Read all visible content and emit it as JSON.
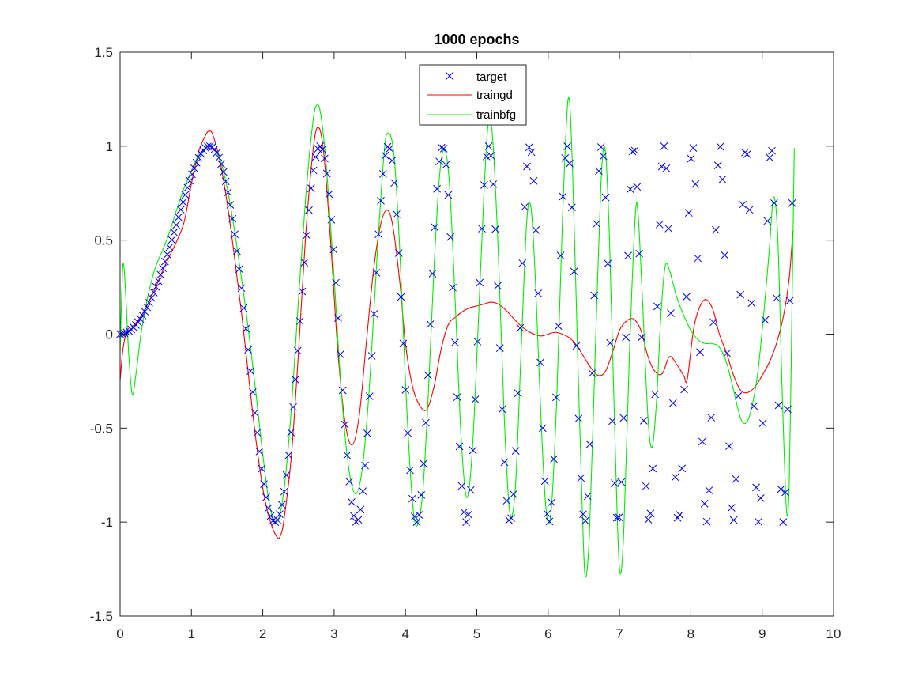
{
  "chart_data": {
    "type": "line",
    "title": "1000 epochs",
    "xlabel": "",
    "ylabel": "",
    "xlim": [
      0,
      10
    ],
    "ylim": [
      -1.5,
      1.5
    ],
    "xticks": [
      0,
      1,
      2,
      3,
      4,
      5,
      6,
      7,
      8,
      9,
      10
    ],
    "yticks": [
      -1.5,
      -1,
      -0.5,
      0,
      0.5,
      1,
      1.5
    ],
    "xtick_labels": [
      "0",
      "1",
      "2",
      "3",
      "4",
      "5",
      "6",
      "7",
      "8",
      "9",
      "10"
    ],
    "ytick_labels": [
      "-1.5",
      "-1",
      "-0.5",
      "0",
      "0.5",
      "1",
      "1.5"
    ],
    "grid": false,
    "legend_location": "top-center",
    "target": {
      "name": "target",
      "marker": "x",
      "color": "#0000ff",
      "x_start": 0,
      "x_end": 9.42,
      "n_points": 300,
      "function": "sin(x^2)"
    },
    "series": [
      {
        "name": "traingd",
        "color": "#ff0000",
        "points": [
          [
            0,
            -0.25
          ],
          [
            0.04,
            -0.08
          ],
          [
            0.1,
            0.02
          ],
          [
            0.2,
            0.05
          ],
          [
            0.3,
            0.1
          ],
          [
            0.4,
            0.17
          ],
          [
            0.5,
            0.25
          ],
          [
            0.6,
            0.34
          ],
          [
            0.7,
            0.42
          ],
          [
            0.8,
            0.5
          ],
          [
            0.9,
            0.6
          ],
          [
            1.0,
            0.8
          ],
          [
            1.1,
            0.97
          ],
          [
            1.2,
            1.06
          ],
          [
            1.25,
            1.08
          ],
          [
            1.3,
            1.06
          ],
          [
            1.4,
            0.92
          ],
          [
            1.5,
            0.7
          ],
          [
            1.6,
            0.42
          ],
          [
            1.7,
            0.12
          ],
          [
            1.8,
            -0.22
          ],
          [
            1.9,
            -0.55
          ],
          [
            2.0,
            -0.82
          ],
          [
            2.1,
            -0.99
          ],
          [
            2.2,
            -1.08
          ],
          [
            2.25,
            -1.07
          ],
          [
            2.3,
            -0.98
          ],
          [
            2.4,
            -0.65
          ],
          [
            2.5,
            -0.1
          ],
          [
            2.6,
            0.52
          ],
          [
            2.7,
            0.96
          ],
          [
            2.77,
            1.1
          ],
          [
            2.85,
            0.98
          ],
          [
            2.95,
            0.5
          ],
          [
            3.05,
            -0.08
          ],
          [
            3.15,
            -0.46
          ],
          [
            3.25,
            -0.59
          ],
          [
            3.35,
            -0.44
          ],
          [
            3.45,
            -0.05
          ],
          [
            3.55,
            0.33
          ],
          [
            3.65,
            0.58
          ],
          [
            3.74,
            0.66
          ],
          [
            3.82,
            0.58
          ],
          [
            3.92,
            0.28
          ],
          [
            4.0,
            -0.05
          ],
          [
            4.1,
            -0.28
          ],
          [
            4.2,
            -0.38
          ],
          [
            4.3,
            -0.4
          ],
          [
            4.4,
            -0.28
          ],
          [
            4.5,
            -0.08
          ],
          [
            4.6,
            0.05
          ],
          [
            4.7,
            0.09
          ],
          [
            4.8,
            0.12
          ],
          [
            4.9,
            0.14
          ],
          [
            5.0,
            0.15
          ],
          [
            5.1,
            0.16
          ],
          [
            5.2,
            0.17
          ],
          [
            5.3,
            0.16
          ],
          [
            5.4,
            0.13
          ],
          [
            5.5,
            0.09
          ],
          [
            5.6,
            0.05
          ],
          [
            5.7,
            0.02
          ],
          [
            5.8,
            0.0
          ],
          [
            5.9,
            -0.01
          ],
          [
            6.0,
            0.0
          ],
          [
            6.1,
            0.01
          ],
          [
            6.2,
            0.0
          ],
          [
            6.3,
            -0.02
          ],
          [
            6.4,
            -0.06
          ],
          [
            6.5,
            -0.12
          ],
          [
            6.6,
            -0.18
          ],
          [
            6.7,
            -0.22
          ],
          [
            6.8,
            -0.2
          ],
          [
            6.9,
            -0.1
          ],
          [
            7.0,
            0.02
          ],
          [
            7.1,
            0.07
          ],
          [
            7.2,
            0.08
          ],
          [
            7.3,
            0.02
          ],
          [
            7.4,
            -0.12
          ],
          [
            7.5,
            -0.2
          ],
          [
            7.6,
            -0.21
          ],
          [
            7.7,
            -0.12
          ],
          [
            7.8,
            -0.16
          ],
          [
            7.9,
            -0.22
          ],
          [
            7.95,
            -0.24
          ],
          [
            8.05,
            0.05
          ],
          [
            8.18,
            0.18
          ],
          [
            8.3,
            0.14
          ],
          [
            8.4,
            0.0
          ],
          [
            8.5,
            -0.1
          ],
          [
            8.6,
            -0.22
          ],
          [
            8.7,
            -0.3
          ],
          [
            8.8,
            -0.31
          ],
          [
            8.9,
            -0.28
          ],
          [
            9.0,
            -0.22
          ],
          [
            9.1,
            -0.15
          ],
          [
            9.2,
            -0.05
          ],
          [
            9.3,
            0.1
          ],
          [
            9.38,
            0.3
          ],
          [
            9.43,
            0.55
          ]
        ]
      },
      {
        "name": "trainbfg",
        "color": "#00ee00",
        "points": [
          [
            0,
            -0.1
          ],
          [
            0.03,
            0.3
          ],
          [
            0.05,
            0.37
          ],
          [
            0.08,
            0.2
          ],
          [
            0.12,
            -0.1
          ],
          [
            0.17,
            -0.32
          ],
          [
            0.22,
            -0.22
          ],
          [
            0.3,
            0.02
          ],
          [
            0.4,
            0.22
          ],
          [
            0.5,
            0.36
          ],
          [
            0.6,
            0.45
          ],
          [
            0.7,
            0.55
          ],
          [
            0.8,
            0.67
          ],
          [
            0.9,
            0.78
          ],
          [
            1.0,
            0.87
          ],
          [
            1.1,
            0.95
          ],
          [
            1.2,
            0.99
          ],
          [
            1.25,
            1.0
          ],
          [
            1.3,
            0.99
          ],
          [
            1.4,
            0.93
          ],
          [
            1.5,
            0.78
          ],
          [
            1.6,
            0.56
          ],
          [
            1.7,
            0.3
          ],
          [
            1.8,
            0.02
          ],
          [
            1.9,
            -0.3
          ],
          [
            2.0,
            -0.64
          ],
          [
            2.1,
            -0.92
          ],
          [
            2.2,
            -1.0
          ],
          [
            2.3,
            -0.82
          ],
          [
            2.4,
            -0.4
          ],
          [
            2.5,
            0.18
          ],
          [
            2.6,
            0.72
          ],
          [
            2.7,
            1.12
          ],
          [
            2.76,
            1.22
          ],
          [
            2.82,
            1.15
          ],
          [
            2.9,
            0.85
          ],
          [
            3.0,
            0.3
          ],
          [
            3.1,
            -0.3
          ],
          [
            3.2,
            -0.7
          ],
          [
            3.3,
            -0.85
          ],
          [
            3.4,
            -0.7
          ],
          [
            3.5,
            -0.25
          ],
          [
            3.6,
            0.4
          ],
          [
            3.7,
            0.96
          ],
          [
            3.76,
            1.07
          ],
          [
            3.84,
            0.95
          ],
          [
            3.92,
            0.45
          ],
          [
            4.0,
            -0.25
          ],
          [
            4.08,
            -0.8
          ],
          [
            4.15,
            -1.02
          ],
          [
            4.24,
            -0.85
          ],
          [
            4.32,
            -0.32
          ],
          [
            4.4,
            0.35
          ],
          [
            4.48,
            0.85
          ],
          [
            4.55,
            0.98
          ],
          [
            4.62,
            0.78
          ],
          [
            4.7,
            0.15
          ],
          [
            4.78,
            -0.55
          ],
          [
            4.86,
            -0.87
          ],
          [
            4.94,
            -0.6
          ],
          [
            5.02,
            0.05
          ],
          [
            5.1,
            0.75
          ],
          [
            5.16,
            1.12
          ],
          [
            5.22,
            1.05
          ],
          [
            5.3,
            0.45
          ],
          [
            5.38,
            -0.4
          ],
          [
            5.46,
            -0.94
          ],
          [
            5.54,
            -0.82
          ],
          [
            5.62,
            -0.1
          ],
          [
            5.7,
            0.6
          ],
          [
            5.76,
            0.67
          ],
          [
            5.82,
            0.3
          ],
          [
            5.9,
            -0.45
          ],
          [
            5.97,
            -0.93
          ],
          [
            6.04,
            -0.95
          ],
          [
            6.12,
            -0.35
          ],
          [
            6.2,
            0.6
          ],
          [
            6.28,
            1.25
          ],
          [
            6.34,
            0.9
          ],
          [
            6.42,
            -0.2
          ],
          [
            6.48,
            -0.95
          ],
          [
            6.52,
            -1.29
          ],
          [
            6.58,
            -1.05
          ],
          [
            6.66,
            -0.1
          ],
          [
            6.74,
            0.8
          ],
          [
            6.8,
            0.98
          ],
          [
            6.86,
            0.5
          ],
          [
            6.94,
            -0.6
          ],
          [
            7.0,
            -1.25
          ],
          [
            7.06,
            -1.05
          ],
          [
            7.14,
            -0.1
          ],
          [
            7.22,
            0.62
          ],
          [
            7.26,
            0.64
          ],
          [
            7.32,
            0.2
          ],
          [
            7.4,
            -0.45
          ],
          [
            7.46,
            -0.6
          ],
          [
            7.52,
            -0.35
          ],
          [
            7.58,
            0.1
          ],
          [
            7.64,
            0.36
          ],
          [
            7.7,
            0.34
          ],
          [
            7.8,
            0.2
          ],
          [
            7.9,
            0.1
          ],
          [
            8.0,
            0.02
          ],
          [
            8.1,
            -0.03
          ],
          [
            8.2,
            -0.05
          ],
          [
            8.3,
            -0.05
          ],
          [
            8.4,
            -0.07
          ],
          [
            8.5,
            -0.15
          ],
          [
            8.6,
            -0.3
          ],
          [
            8.7,
            -0.45
          ],
          [
            8.78,
            -0.47
          ],
          [
            8.86,
            -0.38
          ],
          [
            8.94,
            -0.2
          ],
          [
            9.02,
            0.1
          ],
          [
            9.1,
            0.45
          ],
          [
            9.16,
            0.73
          ],
          [
            9.22,
            0.5
          ],
          [
            9.28,
            -0.3
          ],
          [
            9.34,
            -0.93
          ],
          [
            9.38,
            -0.78
          ],
          [
            9.42,
            0.2
          ],
          [
            9.45,
            0.99
          ]
        ]
      }
    ]
  },
  "legend": {
    "items": [
      {
        "label": "target",
        "color": "#0000ff",
        "style": "marker-x"
      },
      {
        "label": "traingd",
        "color": "#ff0000",
        "style": "line"
      },
      {
        "label": "trainbfg",
        "color": "#00ee00",
        "style": "line"
      }
    ]
  }
}
